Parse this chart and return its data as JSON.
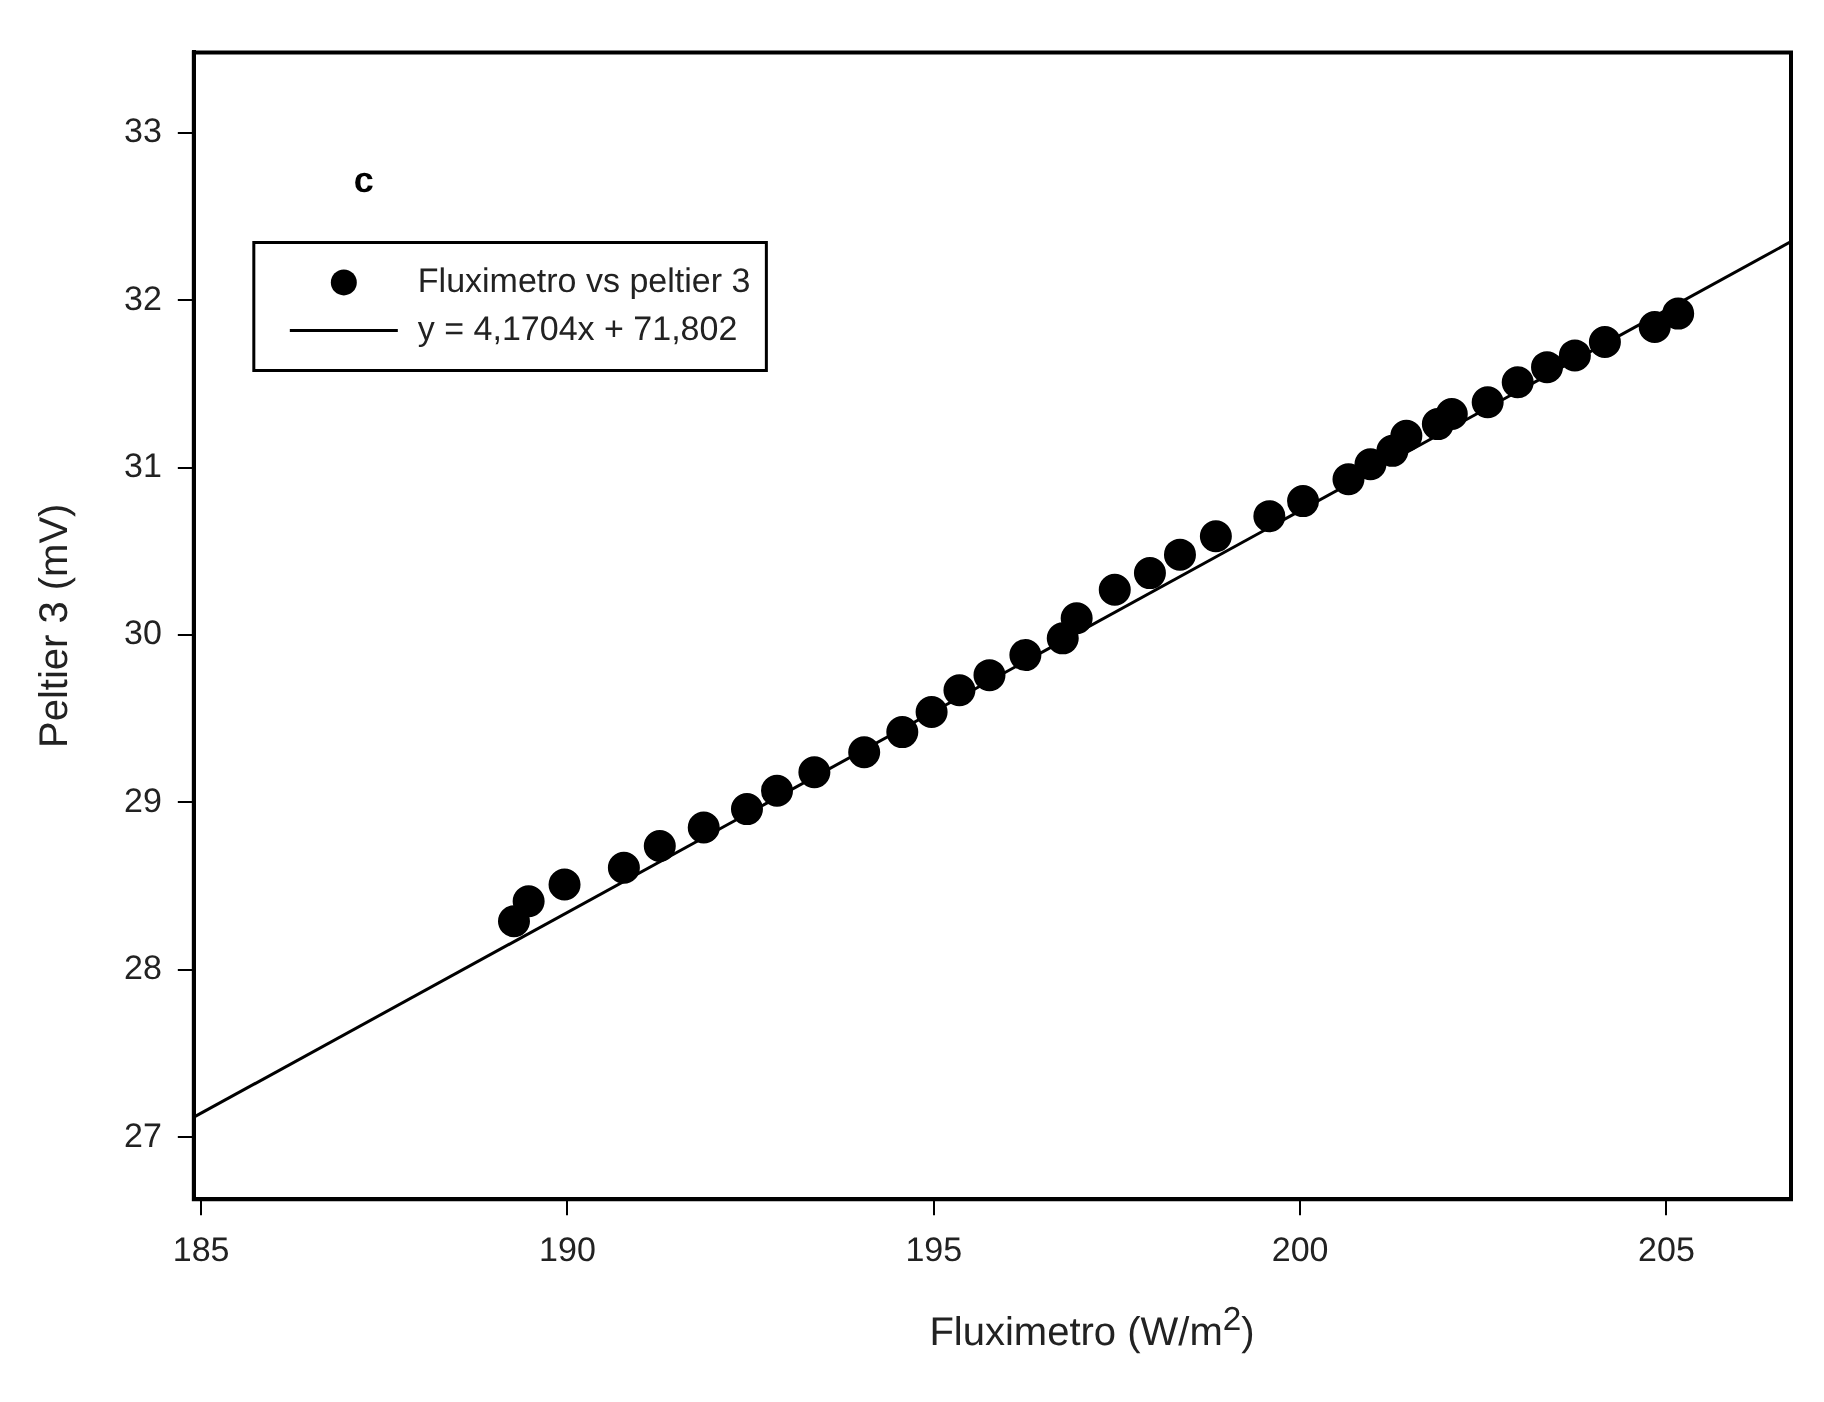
{
  "chart_data": {
    "type": "scatter",
    "xlabel": "Fluximetro (W/m$^{2}$)",
    "ylabel": "Peltier 3 (mV)",
    "xlim": [
      184.9,
      206.7
    ],
    "xticks": [
      185,
      190,
      195,
      200,
      205
    ],
    "ylim": [
      26.63,
      33.48
    ],
    "yticks": [
      27,
      28,
      29,
      30,
      31,
      32,
      33
    ],
    "grid": false,
    "legend": "top left",
    "annotations": [
      "c"
    ],
    "series": [
      {
        "name": "Fluximetro vs peltier 3",
        "type": "scatter",
        "marker": "circle",
        "color": "#000000",
        "x": [
          189.27,
          189.47,
          189.96,
          190.77,
          191.26,
          191.86,
          192.45,
          192.86,
          193.37,
          194.05,
          194.57,
          194.97,
          195.35,
          195.76,
          196.25,
          196.76,
          196.95,
          197.47,
          197.95,
          198.36,
          198.85,
          199.58,
          200.04,
          200.66,
          200.96,
          201.26,
          201.45,
          201.88,
          202.07,
          202.56,
          202.97,
          203.37,
          203.75,
          204.16,
          204.84,
          205.16
        ],
        "values": [
          28.29,
          28.41,
          28.51,
          28.61,
          28.74,
          28.85,
          28.96,
          29.07,
          29.18,
          29.3,
          29.42,
          29.54,
          29.67,
          29.76,
          29.88,
          29.98,
          30.1,
          30.27,
          30.37,
          30.48,
          30.59,
          30.71,
          30.8,
          30.93,
          31.02,
          31.1,
          31.19,
          31.26,
          31.32,
          31.39,
          31.51,
          31.6,
          31.67,
          31.75,
          31.84,
          31.92
        ]
      },
      {
        "name": "y = 4,1704x + 71,802",
        "type": "line",
        "marker": "none",
        "color": "#000000",
        "line_style": "solid",
        "x": [
          184.9,
          206.7
        ],
        "values": [
          27.12,
          32.35
        ]
      }
    ]
  }
}
